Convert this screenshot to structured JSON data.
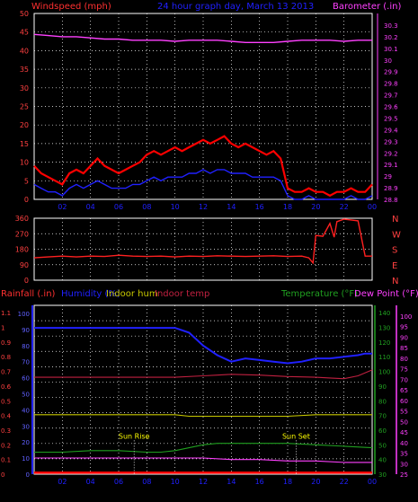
{
  "header": {
    "left_label": "Windspeed (mph)",
    "center_label": "24 hour graph day, March 13 2013",
    "right_label": "Barometer (.in)"
  },
  "colors": {
    "background": "#000000",
    "grid": "#ffffff",
    "wind": "#ff0000",
    "wind_avg": "#2020ff",
    "barometer": "#ff40ff",
    "direction": "#ff2020",
    "humidity": "#2020ff",
    "indoor_hum": "#c8c800",
    "indoor_temp": "#c02040",
    "temperature": "#20a020",
    "dew_point": "#ff40ff",
    "rainfall": "#ff0000",
    "axis_label": "#ff4040",
    "sun_label": "#ffff00"
  },
  "x_tick_labels": [
    "02",
    "04",
    "06",
    "08",
    "10",
    "12",
    "14",
    "16",
    "18",
    "20",
    "22",
    "00"
  ],
  "chart_data": [
    {
      "id": "wind_baro",
      "type": "line",
      "x_range": [
        0,
        24
      ],
      "ylabel_left": "Windspeed (mph)",
      "ylabel_right": "Barometer (.in)",
      "ylim_left": [
        0,
        50
      ],
      "ylim_right": [
        28.8,
        30.4
      ],
      "left_ticks": [
        "0",
        "5",
        "10",
        "15",
        "20",
        "25",
        "30",
        "35",
        "40",
        "45",
        "50"
      ],
      "right_ticks": [
        "28.8",
        "28.9",
        "29",
        "29.1",
        "29.2",
        "29.3",
        "29.4",
        "29.5",
        "29.6",
        "29.7",
        "29.8",
        "29.9",
        "30",
        "30.1",
        "30.2",
        "30.3"
      ],
      "grid": true,
      "series": [
        {
          "key": "barometer",
          "axis": "right",
          "x": [
            0,
            1,
            2,
            3,
            4,
            5,
            6,
            7,
            8,
            9,
            10,
            11,
            12,
            13,
            14,
            15,
            16,
            17,
            18,
            19,
            20,
            21,
            22,
            23,
            24
          ],
          "values": [
            30.22,
            30.21,
            30.2,
            30.2,
            30.19,
            30.18,
            30.18,
            30.17,
            30.17,
            30.17,
            30.16,
            30.17,
            30.17,
            30.17,
            30.16,
            30.15,
            30.15,
            30.15,
            30.16,
            30.17,
            30.17,
            30.17,
            30.16,
            30.17,
            30.17
          ]
        },
        {
          "key": "wind_gust",
          "axis": "left",
          "x": [
            0,
            0.5,
            1,
            1.5,
            2,
            2.5,
            3,
            3.5,
            4,
            4.5,
            5,
            5.5,
            6,
            6.5,
            7,
            7.5,
            8,
            8.5,
            9,
            9.5,
            10,
            10.5,
            11,
            11.5,
            12,
            12.5,
            13,
            13.5,
            14,
            14.5,
            15,
            15.5,
            16,
            16.5,
            17,
            17.5,
            18,
            18.5,
            19,
            19.5,
            20,
            20.5,
            21,
            21.5,
            22,
            22.5,
            23,
            23.5,
            24
          ],
          "values": [
            9,
            7,
            6,
            5,
            4,
            7,
            8,
            7,
            9,
            11,
            9,
            8,
            7,
            8,
            9,
            10,
            12,
            13,
            12,
            13,
            14,
            13,
            14,
            15,
            16,
            15,
            16,
            17,
            15,
            14,
            15,
            14,
            13,
            12,
            13,
            11,
            3,
            2,
            2,
            3,
            2,
            2,
            1,
            2,
            2,
            3,
            2,
            2,
            4
          ]
        },
        {
          "key": "wind_avg",
          "axis": "left",
          "x": [
            0,
            0.5,
            1,
            1.5,
            2,
            2.5,
            3,
            3.5,
            4,
            4.5,
            5,
            5.5,
            6,
            6.5,
            7,
            7.5,
            8,
            8.5,
            9,
            9.5,
            10,
            10.5,
            11,
            11.5,
            12,
            12.5,
            13,
            13.5,
            14,
            14.5,
            15,
            15.5,
            16,
            16.5,
            17,
            17.5,
            18,
            18.5,
            19,
            19.5,
            20,
            20.5,
            21,
            21.5,
            22,
            22.5,
            23,
            23.5,
            24
          ],
          "values": [
            4,
            3,
            2,
            2,
            1,
            3,
            4,
            3,
            4,
            5,
            4,
            3,
            3,
            3,
            4,
            4,
            5,
            6,
            5,
            6,
            6,
            6,
            7,
            7,
            8,
            7,
            8,
            8,
            7,
            7,
            7,
            6,
            6,
            6,
            6,
            5,
            1,
            0,
            0,
            1,
            0,
            0,
            0,
            0,
            0,
            1,
            0,
            0,
            1
          ]
        }
      ]
    },
    {
      "id": "direction",
      "type": "line",
      "x_range": [
        0,
        24
      ],
      "ylim": [
        0,
        360
      ],
      "left_ticks": [
        "0",
        "90",
        "180",
        "270",
        "360"
      ],
      "right_labels": [
        "N",
        "W",
        "S",
        "E",
        "N"
      ],
      "grid": true,
      "series": [
        {
          "key": "wind_direction",
          "x": [
            0,
            1,
            2,
            3,
            4,
            5,
            6,
            7,
            8,
            9,
            10,
            11,
            12,
            13,
            14,
            15,
            16,
            17,
            18,
            19,
            19.5,
            19.8,
            20,
            20.5,
            21,
            21.3,
            21.5,
            22,
            22.5,
            23,
            23.5,
            24
          ],
          "values": [
            130,
            135,
            140,
            135,
            140,
            138,
            145,
            140,
            138,
            140,
            135,
            140,
            138,
            142,
            140,
            138,
            140,
            142,
            138,
            140,
            130,
            100,
            260,
            255,
            330,
            250,
            340,
            355,
            350,
            345,
            140,
            140
          ]
        }
      ]
    },
    {
      "id": "temp_hum_rain",
      "type": "line",
      "x_range": [
        0,
        24
      ],
      "ylabel_left_1": "Rainfall (.in)",
      "ylabel_left_2": "Humidity (%)",
      "ylabel_left_3": "Indoor hum",
      "ylabel_left_4": "Indoor temp",
      "ylabel_right_1": "Temperature (°F)",
      "ylabel_right_2": "Dew Point (°F)",
      "rain_ticks": [
        "0",
        "0.1",
        "0.2",
        "0.3",
        "0.4",
        "0.5",
        "0.6",
        "0.7",
        "0.8",
        "0.9",
        "1",
        "1.1"
      ],
      "humidity_ticks": [
        "0",
        "10",
        "20",
        "30",
        "40",
        "50",
        "60",
        "70",
        "80",
        "90",
        "100"
      ],
      "temp_ticks": [
        "30",
        "40",
        "50",
        "60",
        "70",
        "80",
        "90",
        "100",
        "110",
        "120",
        "130",
        "140"
      ],
      "dew_ticks": [
        "25",
        "30",
        "35",
        "40",
        "45",
        "50",
        "55",
        "60",
        "65",
        "70",
        "75",
        "80",
        "85",
        "90",
        "95",
        "100"
      ],
      "annotations": [
        {
          "label": "Sun Rise",
          "x": 7.1
        },
        {
          "label": "Sun Set",
          "x": 18.6
        }
      ],
      "grid": true,
      "series": [
        {
          "key": "humidity",
          "axis": "humidity",
          "x": [
            0,
            1,
            2,
            3,
            4,
            5,
            6,
            7,
            8,
            9,
            10,
            11,
            12,
            13,
            14,
            15,
            16,
            17,
            18,
            19,
            20,
            21,
            22,
            23,
            23.5,
            24
          ],
          "values": [
            91,
            91,
            91,
            91,
            91,
            91,
            91,
            91,
            91,
            91,
            91,
            88,
            80,
            74,
            70,
            72,
            71,
            70,
            69,
            70,
            72,
            72,
            73,
            74,
            75,
            75
          ]
        },
        {
          "key": "indoor_temp",
          "axis": "temp",
          "x": [
            0,
            2,
            4,
            6,
            8,
            10,
            12,
            13,
            14,
            16,
            18,
            20,
            21,
            22,
            23,
            24
          ],
          "values": [
            96,
            96,
            96,
            96,
            96,
            96,
            97,
            97.5,
            98,
            97.5,
            96.5,
            96,
            95.5,
            95,
            97,
            101
          ]
        },
        {
          "key": "indoor_hum",
          "axis": "humidity",
          "x": [
            0,
            2,
            4,
            6,
            8,
            10,
            11,
            12,
            14,
            16,
            18,
            20,
            22,
            24
          ],
          "values": [
            37,
            37,
            37,
            37,
            37,
            37,
            36,
            36,
            36,
            36,
            36,
            37,
            37,
            37
          ]
        },
        {
          "key": "temperature",
          "axis": "temp",
          "x": [
            0,
            2,
            4,
            6,
            8,
            9,
            10,
            11,
            12,
            13,
            14,
            16,
            18,
            20,
            22,
            24
          ],
          "values": [
            45,
            45,
            46,
            46,
            45,
            45,
            46,
            48,
            50,
            51,
            51,
            51,
            51,
            50,
            49,
            48
          ]
        },
        {
          "key": "dew_point",
          "axis": "temp",
          "x": [
            0,
            2,
            4,
            6,
            8,
            10,
            12,
            14,
            16,
            18,
            20,
            22,
            24
          ],
          "values": [
            41,
            41,
            41,
            41,
            41,
            41,
            41,
            40,
            40,
            39,
            39,
            38,
            38
          ]
        },
        {
          "key": "rainfall",
          "axis": "rain",
          "x": [
            0,
            24
          ],
          "values": [
            0.01,
            0.01
          ]
        }
      ]
    }
  ]
}
